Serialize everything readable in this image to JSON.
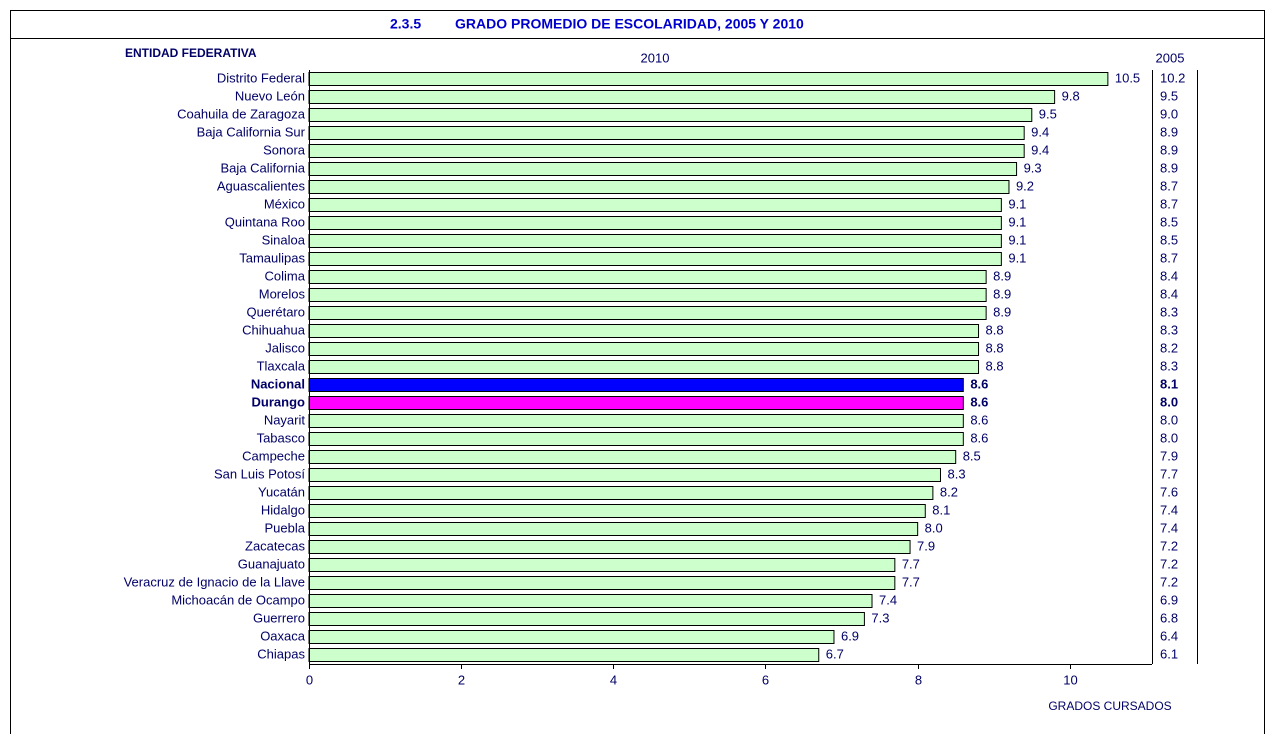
{
  "chart_data": {
    "type": "bar",
    "orientation": "horizontal",
    "title_number": "2.3.5",
    "title": "GRADO PROMEDIO DE ESCOLARIDAD, 2005 Y 2010",
    "category_axis_title": "ENTIDAD FEDERATIVA",
    "x_label": "GRADOS CURSADOS",
    "categories": [
      "Distrito Federal",
      "Nuevo León",
      "Coahuila de Zaragoza",
      "Baja California Sur",
      "Sonora",
      "Baja California",
      "Aguascalientes",
      "México",
      "Quintana Roo",
      "Sinaloa",
      "Tamaulipas",
      "Colima",
      "Morelos",
      "Querétaro",
      "Chihuahua",
      "Jalisco",
      "Tlaxcala",
      "Nacional",
      "Durango",
      "Nayarit",
      "Tabasco",
      "Campeche",
      "San Luis Potosí",
      "Yucatán",
      "Hidalgo",
      "Puebla",
      "Zacatecas",
      "Guanajuato",
      "Veracruz de Ignacio de la Llave",
      "Michoacán de Ocampo",
      "Guerrero",
      "Oaxaca",
      "Chiapas"
    ],
    "series": [
      {
        "name": "2010",
        "color": "#ccffcc",
        "values": [
          10.5,
          9.8,
          9.5,
          9.4,
          9.4,
          9.3,
          9.2,
          9.1,
          9.1,
          9.1,
          9.1,
          8.9,
          8.9,
          8.9,
          8.8,
          8.8,
          8.8,
          8.6,
          8.6,
          8.6,
          8.6,
          8.5,
          8.3,
          8.2,
          8.1,
          8.0,
          7.9,
          7.7,
          7.7,
          7.4,
          7.3,
          6.9,
          6.7
        ],
        "value_labels": [
          "10.5",
          "9.8",
          "9.5",
          "9.4",
          "9.4",
          "9.3",
          "9.2",
          "9.1",
          "9.1",
          "9.1",
          "9.1",
          "8.9",
          "8.9",
          "8.9",
          "8.8",
          "8.8",
          "8.8",
          "8.6",
          "8.6",
          "8.6",
          "8.6",
          "8.5",
          "8.3",
          "8.2",
          "8.1",
          "8.0",
          "7.9",
          "7.7",
          "7.7",
          "7.4",
          "7.3",
          "6.9",
          "6.7"
        ]
      }
    ],
    "bar_colors": {
      "17": "#0000ff",
      "18": "#ff00ff"
    },
    "bold_rows": [
      17,
      18
    ],
    "table_column": {
      "name": "2005",
      "values": [
        10.2,
        9.5,
        9.0,
        8.9,
        8.9,
        8.9,
        8.7,
        8.7,
        8.5,
        8.5,
        8.7,
        8.4,
        8.4,
        8.3,
        8.3,
        8.2,
        8.3,
        8.1,
        8.0,
        8.0,
        8.0,
        7.9,
        7.7,
        7.6,
        7.4,
        7.4,
        7.2,
        7.2,
        7.2,
        6.9,
        6.8,
        6.4,
        6.1
      ],
      "value_labels": [
        "10.2",
        "9.5",
        "9.0",
        "8.9",
        "8.9",
        "8.9",
        "8.7",
        "8.7",
        "8.5",
        "8.5",
        "8.7",
        "8.4",
        "8.4",
        "8.3",
        "8.3",
        "8.2",
        "8.3",
        "8.1",
        "8.0",
        "8.0",
        "8.0",
        "7.9",
        "7.7",
        "7.6",
        "7.4",
        "7.4",
        "7.2",
        "7.2",
        "7.2",
        "6.9",
        "6.8",
        "6.4",
        "6.1"
      ]
    },
    "xlim": [
      0,
      11.08
    ],
    "xticks": [
      0,
      2,
      4,
      6,
      8,
      10
    ]
  }
}
